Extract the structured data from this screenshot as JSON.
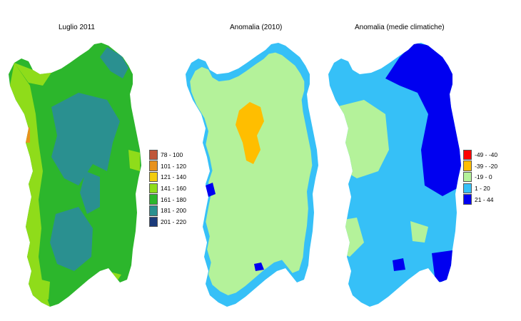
{
  "maps": [
    {
      "title": "Luglio 2011"
    },
    {
      "title": "Anomalia (2010)"
    },
    {
      "title": "Anomalia (medie climatiche)"
    }
  ],
  "legend_days": {
    "items": [
      {
        "label": "78 - 100",
        "color": "#c0573a"
      },
      {
        "label": "101 - 120",
        "color": "#e8921c"
      },
      {
        "label": "121 - 140",
        "color": "#f2cc0c"
      },
      {
        "label": "141 - 160",
        "color": "#8fdc1a"
      },
      {
        "label": "161 - 180",
        "color": "#2cb62c"
      },
      {
        "label": "181 - 200",
        "color": "#2a9090"
      },
      {
        "label": "201 - 220",
        "color": "#1a3a7a"
      }
    ]
  },
  "legend_anomaly": {
    "items": [
      {
        "label": "-49 - -40",
        "color": "#ff0000"
      },
      {
        "label": "-39 - -20",
        "color": "#ffbe00"
      },
      {
        "label": "-19 - 0",
        "color": "#b4f29a"
      },
      {
        "label": "1 - 20",
        "color": "#36c0f7"
      },
      {
        "label": "21 - 44",
        "color": "#0000f0"
      }
    ]
  }
}
